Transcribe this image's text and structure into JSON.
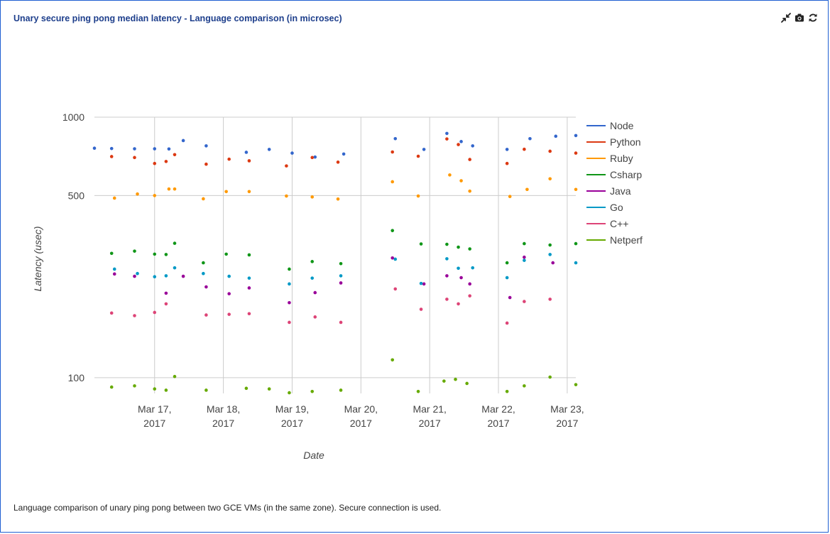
{
  "header": {
    "title": "Unary secure ping pong median latency - Language comparison (in microsec)"
  },
  "toolbar": {
    "icons": [
      "collapse-icon",
      "camera-icon",
      "refresh-icon"
    ]
  },
  "caption": "Language comparison of unary ping pong between two GCE VMs (in the same zone). Secure connection is used.",
  "chart_data": {
    "type": "scatter",
    "title": "",
    "xlabel": "Date",
    "ylabel": "Latency (usec)",
    "y_scale": "log",
    "ylim": [
      87,
      1000
    ],
    "xlim": [
      "2017-03-16 03:00",
      "2017-03-23 03:00"
    ],
    "yticks": [
      100,
      500,
      1000
    ],
    "xticks": [
      {
        "value": "2017-03-17",
        "label": [
          "Mar 17,",
          "2017"
        ]
      },
      {
        "value": "2017-03-18",
        "label": [
          "Mar 18,",
          "2017"
        ]
      },
      {
        "value": "2017-03-19",
        "label": [
          "Mar 19,",
          "2017"
        ]
      },
      {
        "value": "2017-03-20",
        "label": [
          "Mar 20,",
          "2017"
        ]
      },
      {
        "value": "2017-03-21",
        "label": [
          "Mar 21,",
          "2017"
        ]
      },
      {
        "value": "2017-03-22",
        "label": [
          "Mar 22,",
          "2017"
        ]
      },
      {
        "value": "2017-03-23",
        "label": [
          "Mar 23,",
          "2017"
        ]
      }
    ],
    "grid": true,
    "legend_position": "right",
    "series": [
      {
        "name": "Node",
        "color": "#3366cc",
        "points": [
          [
            "2017-03-16 03:00",
            760
          ],
          [
            "2017-03-16 09:00",
            758
          ],
          [
            "2017-03-16 17:00",
            756
          ],
          [
            "2017-03-17 00:00",
            756
          ],
          [
            "2017-03-17 05:00",
            755
          ],
          [
            "2017-03-17 10:00",
            813
          ],
          [
            "2017-03-17 18:00",
            776
          ],
          [
            "2017-03-18 08:00",
            733
          ],
          [
            "2017-03-18 16:00",
            752
          ],
          [
            "2017-03-19 00:00",
            728
          ],
          [
            "2017-03-19 08:00",
            703
          ],
          [
            "2017-03-19 18:00",
            722
          ],
          [
            "2017-03-20 12:00",
            827
          ],
          [
            "2017-03-20 22:00",
            752
          ],
          [
            "2017-03-21 06:00",
            866
          ],
          [
            "2017-03-21 11:00",
            806
          ],
          [
            "2017-03-21 15:00",
            776
          ],
          [
            "2017-03-22 03:00",
            752
          ],
          [
            "2017-03-22 11:00",
            827
          ],
          [
            "2017-03-22 20:00",
            845
          ],
          [
            "2017-03-23 03:00",
            850
          ]
        ]
      },
      {
        "name": "Python",
        "color": "#dc3912",
        "points": [
          [
            "2017-03-16 09:00",
            706
          ],
          [
            "2017-03-16 17:00",
            700
          ],
          [
            "2017-03-17 00:00",
            664
          ],
          [
            "2017-03-17 04:00",
            676
          ],
          [
            "2017-03-17 07:00",
            718
          ],
          [
            "2017-03-17 18:00",
            660
          ],
          [
            "2017-03-18 02:00",
            690
          ],
          [
            "2017-03-18 09:00",
            680
          ],
          [
            "2017-03-18 22:00",
            650
          ],
          [
            "2017-03-19 07:00",
            700
          ],
          [
            "2017-03-19 16:00",
            672
          ],
          [
            "2017-03-20 11:00",
            735
          ],
          [
            "2017-03-20 20:00",
            708
          ],
          [
            "2017-03-21 06:00",
            825
          ],
          [
            "2017-03-21 10:00",
            785
          ],
          [
            "2017-03-21 14:00",
            688
          ],
          [
            "2017-03-22 03:00",
            664
          ],
          [
            "2017-03-22 09:00",
            753
          ],
          [
            "2017-03-22 18:00",
            740
          ],
          [
            "2017-03-23 03:00",
            728
          ]
        ]
      },
      {
        "name": "Ruby",
        "color": "#ff9900",
        "points": [
          [
            "2017-03-16 10:00",
            489
          ],
          [
            "2017-03-16 18:00",
            507
          ],
          [
            "2017-03-17 00:00",
            500
          ],
          [
            "2017-03-17 05:00",
            530
          ],
          [
            "2017-03-17 07:00",
            530
          ],
          [
            "2017-03-17 17:00",
            486
          ],
          [
            "2017-03-18 01:00",
            518
          ],
          [
            "2017-03-18 09:00",
            518
          ],
          [
            "2017-03-18 22:00",
            498
          ],
          [
            "2017-03-19 07:00",
            494
          ],
          [
            "2017-03-19 16:00",
            485
          ],
          [
            "2017-03-20 11:00",
            565
          ],
          [
            "2017-03-20 20:00",
            498
          ],
          [
            "2017-03-21 07:00",
            600
          ],
          [
            "2017-03-21 11:00",
            570
          ],
          [
            "2017-03-21 14:00",
            520
          ],
          [
            "2017-03-22 04:00",
            496
          ],
          [
            "2017-03-22 10:00",
            528
          ],
          [
            "2017-03-22 18:00",
            580
          ],
          [
            "2017-03-23 03:00",
            528
          ]
        ]
      },
      {
        "name": "Csharp",
        "color": "#109618",
        "points": [
          [
            "2017-03-16 09:00",
            300
          ],
          [
            "2017-03-16 17:00",
            306
          ],
          [
            "2017-03-17 00:00",
            298
          ],
          [
            "2017-03-17 04:00",
            297
          ],
          [
            "2017-03-17 07:00",
            328
          ],
          [
            "2017-03-17 17:00",
            276
          ],
          [
            "2017-03-18 01:00",
            298
          ],
          [
            "2017-03-18 09:00",
            296
          ],
          [
            "2017-03-18 23:00",
            261
          ],
          [
            "2017-03-19 07:00",
            279
          ],
          [
            "2017-03-19 17:00",
            274
          ],
          [
            "2017-03-20 11:00",
            367
          ],
          [
            "2017-03-20 21:00",
            326
          ],
          [
            "2017-03-21 06:00",
            325
          ],
          [
            "2017-03-21 10:00",
            317
          ],
          [
            "2017-03-21 14:00",
            312
          ],
          [
            "2017-03-22 03:00",
            276
          ],
          [
            "2017-03-22 09:00",
            327
          ],
          [
            "2017-03-22 18:00",
            323
          ],
          [
            "2017-03-23 03:00",
            327
          ]
        ]
      },
      {
        "name": "Java",
        "color": "#990099",
        "points": [
          [
            "2017-03-16 10:00",
            250
          ],
          [
            "2017-03-16 17:00",
            245
          ],
          [
            "2017-03-17 04:00",
            211
          ],
          [
            "2017-03-17 10:00",
            245
          ],
          [
            "2017-03-17 18:00",
            223
          ],
          [
            "2017-03-18 02:00",
            210
          ],
          [
            "2017-03-18 09:00",
            221
          ],
          [
            "2017-03-18 23:00",
            194
          ],
          [
            "2017-03-19 08:00",
            212
          ],
          [
            "2017-03-19 17:00",
            231
          ],
          [
            "2017-03-20 11:00",
            288
          ],
          [
            "2017-03-20 22:00",
            229
          ],
          [
            "2017-03-21 06:00",
            246
          ],
          [
            "2017-03-21 11:00",
            242
          ],
          [
            "2017-03-21 14:00",
            229
          ],
          [
            "2017-03-22 04:00",
            203
          ],
          [
            "2017-03-22 09:00",
            290
          ],
          [
            "2017-03-22 19:00",
            276
          ]
        ]
      },
      {
        "name": "Go",
        "color": "#0099c6",
        "points": [
          [
            "2017-03-16 10:00",
            261
          ],
          [
            "2017-03-16 18:00",
            251
          ],
          [
            "2017-03-17 00:00",
            244
          ],
          [
            "2017-03-17 04:00",
            246
          ],
          [
            "2017-03-17 07:00",
            264
          ],
          [
            "2017-03-17 17:00",
            251
          ],
          [
            "2017-03-18 02:00",
            245
          ],
          [
            "2017-03-18 09:00",
            241
          ],
          [
            "2017-03-18 23:00",
            229
          ],
          [
            "2017-03-19 07:00",
            241
          ],
          [
            "2017-03-19 17:00",
            246
          ],
          [
            "2017-03-20 12:00",
            285
          ],
          [
            "2017-03-20 21:00",
            230
          ],
          [
            "2017-03-21 06:00",
            286
          ],
          [
            "2017-03-21 10:00",
            263
          ],
          [
            "2017-03-21 15:00",
            264
          ],
          [
            "2017-03-22 03:00",
            242
          ],
          [
            "2017-03-22 09:00",
            282
          ],
          [
            "2017-03-22 18:00",
            297
          ],
          [
            "2017-03-23 03:00",
            276
          ]
        ]
      },
      {
        "name": "C++",
        "color": "#dd4477",
        "points": [
          [
            "2017-03-16 09:00",
            177
          ],
          [
            "2017-03-16 17:00",
            173
          ],
          [
            "2017-03-17 00:00",
            178
          ],
          [
            "2017-03-17 04:00",
            192
          ],
          [
            "2017-03-17 18:00",
            174
          ],
          [
            "2017-03-18 02:00",
            175
          ],
          [
            "2017-03-18 09:00",
            176
          ],
          [
            "2017-03-18 23:00",
            163
          ],
          [
            "2017-03-19 08:00",
            171
          ],
          [
            "2017-03-19 17:00",
            163
          ],
          [
            "2017-03-20 12:00",
            219
          ],
          [
            "2017-03-20 21:00",
            183
          ],
          [
            "2017-03-21 06:00",
            200
          ],
          [
            "2017-03-21 10:00",
            192
          ],
          [
            "2017-03-21 14:00",
            206
          ],
          [
            "2017-03-22 03:00",
            162
          ],
          [
            "2017-03-22 09:00",
            196
          ],
          [
            "2017-03-22 18:00",
            200
          ]
        ]
      },
      {
        "name": "Netperf",
        "color": "#66aa00",
        "points": [
          [
            "2017-03-16 09:00",
            92
          ],
          [
            "2017-03-16 17:00",
            93
          ],
          [
            "2017-03-17 00:00",
            90.5
          ],
          [
            "2017-03-17 04:00",
            89.5
          ],
          [
            "2017-03-17 07:00",
            101
          ],
          [
            "2017-03-17 18:00",
            89.5
          ],
          [
            "2017-03-18 08:00",
            91
          ],
          [
            "2017-03-18 16:00",
            90.5
          ],
          [
            "2017-03-18 23:00",
            87.5
          ],
          [
            "2017-03-19 07:00",
            88.5
          ],
          [
            "2017-03-19 17:00",
            89.5
          ],
          [
            "2017-03-20 11:00",
            117
          ],
          [
            "2017-03-20 20:00",
            88.5
          ],
          [
            "2017-03-21 05:00",
            97
          ],
          [
            "2017-03-21 09:00",
            98.5
          ],
          [
            "2017-03-21 13:00",
            95
          ],
          [
            "2017-03-22 03:00",
            88.5
          ],
          [
            "2017-03-22 09:00",
            93
          ],
          [
            "2017-03-22 18:00",
            100.5
          ],
          [
            "2017-03-23 03:00",
            94
          ]
        ]
      }
    ]
  }
}
